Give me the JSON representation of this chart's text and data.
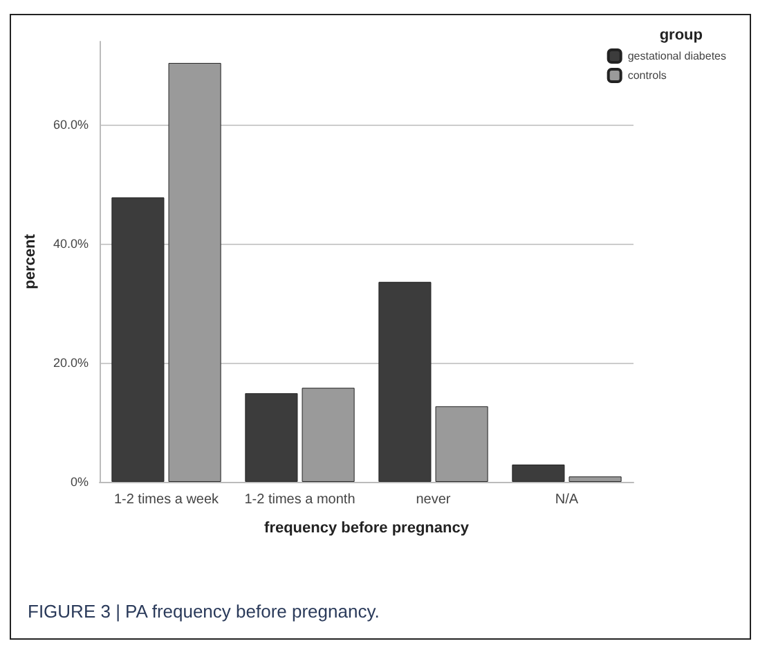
{
  "chart_data": {
    "type": "bar",
    "categories": [
      "1-2 times a week",
      "1-2 times a month",
      "never",
      "N/A"
    ],
    "series": [
      {
        "name": "gestational diabetes",
        "color": "#3c3c3c",
        "values": [
          47.8,
          14.9,
          33.6,
          2.9
        ]
      },
      {
        "name": "controls",
        "color": "#9a9a9a",
        "values": [
          70.4,
          15.8,
          12.7,
          0.9
        ]
      }
    ],
    "xlabel": "frequency before pregnancy",
    "ylabel": "percent",
    "legend_title": "group",
    "ylim": [
      0,
      74
    ],
    "yticks": [
      {
        "value": 0,
        "label": "0%"
      },
      {
        "value": 20,
        "label": "20.0%"
      },
      {
        "value": 40,
        "label": "40.0%"
      },
      {
        "value": 60,
        "label": "60.0%"
      }
    ],
    "grid": "y",
    "legend": "top right",
    "annotations": [
      "FIGURE 3 | PA frequency before pregnancy."
    ]
  }
}
